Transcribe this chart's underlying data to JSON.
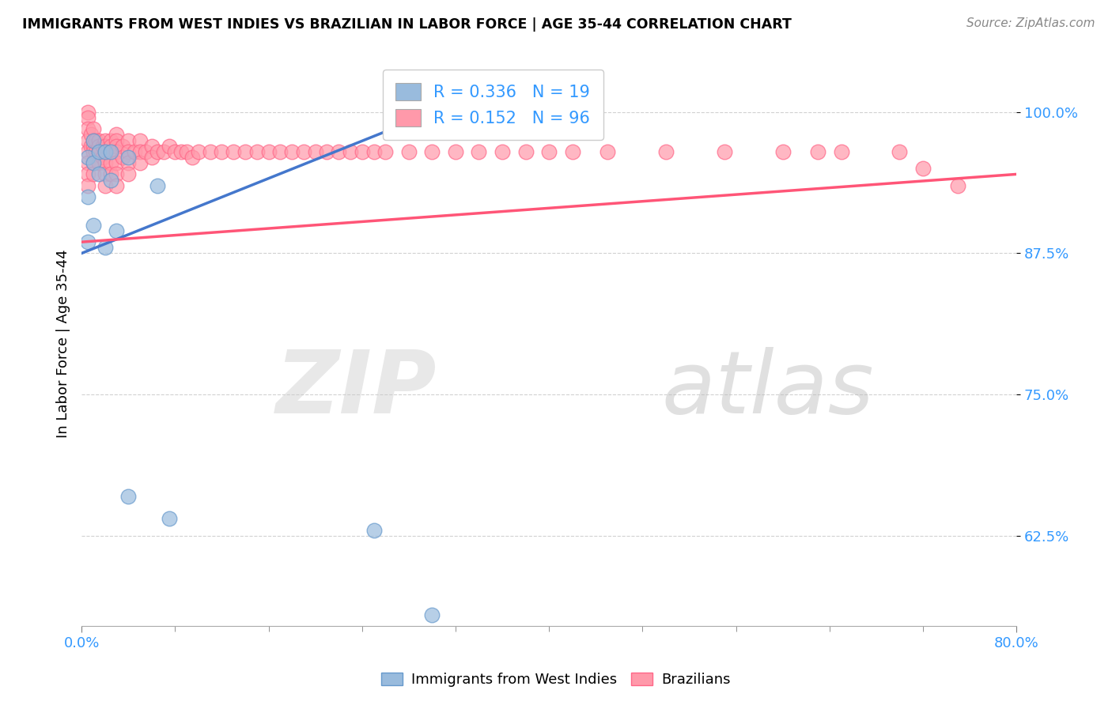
{
  "title": "IMMIGRANTS FROM WEST INDIES VS BRAZILIAN IN LABOR FORCE | AGE 35-44 CORRELATION CHART",
  "source": "Source: ZipAtlas.com",
  "ylabel": "In Labor Force | Age 35-44",
  "y_tick_labels": [
    "62.5%",
    "75.0%",
    "87.5%",
    "100.0%"
  ],
  "y_tick_values": [
    0.625,
    0.75,
    0.875,
    1.0
  ],
  "xlim": [
    0.0,
    0.8
  ],
  "ylim": [
    0.545,
    1.045
  ],
  "legend_R_labels": [
    "R = 0.336   N = 19",
    "R = 0.152   N = 96"
  ],
  "legend_labels": [
    "Immigrants from West Indies",
    "Brazilians"
  ],
  "blue_color": "#99BBDD",
  "pink_color": "#FF99AA",
  "blue_edge_color": "#6699CC",
  "pink_edge_color": "#FF6688",
  "blue_line_color": "#4477CC",
  "pink_line_color": "#FF5577",
  "blue_trend": [
    0.0,
    0.35,
    0.875,
    1.02
  ],
  "pink_trend": [
    0.0,
    0.8,
    0.885,
    0.945
  ],
  "west_indies_x": [
    0.005,
    0.005,
    0.005,
    0.01,
    0.01,
    0.01,
    0.015,
    0.015,
    0.02,
    0.02,
    0.025,
    0.025,
    0.03,
    0.04,
    0.04,
    0.065,
    0.075,
    0.25,
    0.3
  ],
  "west_indies_y": [
    0.96,
    0.925,
    0.885,
    0.975,
    0.955,
    0.9,
    0.965,
    0.945,
    0.965,
    0.88,
    0.965,
    0.94,
    0.895,
    0.96,
    0.66,
    0.935,
    0.64,
    0.63,
    0.555
  ],
  "brazil_x": [
    0.005,
    0.005,
    0.005,
    0.005,
    0.005,
    0.005,
    0.005,
    0.005,
    0.008,
    0.008,
    0.01,
    0.01,
    0.01,
    0.01,
    0.01,
    0.01,
    0.012,
    0.012,
    0.015,
    0.015,
    0.015,
    0.015,
    0.018,
    0.018,
    0.02,
    0.02,
    0.02,
    0.02,
    0.02,
    0.02,
    0.025,
    0.025,
    0.025,
    0.025,
    0.025,
    0.03,
    0.03,
    0.03,
    0.03,
    0.03,
    0.03,
    0.03,
    0.035,
    0.035,
    0.04,
    0.04,
    0.04,
    0.04,
    0.045,
    0.05,
    0.05,
    0.05,
    0.055,
    0.06,
    0.06,
    0.065,
    0.07,
    0.075,
    0.08,
    0.085,
    0.09,
    0.095,
    0.1,
    0.11,
    0.12,
    0.13,
    0.14,
    0.15,
    0.16,
    0.17,
    0.18,
    0.19,
    0.2,
    0.21,
    0.22,
    0.23,
    0.24,
    0.25,
    0.26,
    0.28,
    0.3,
    0.32,
    0.34,
    0.36,
    0.38,
    0.4,
    0.42,
    0.45,
    0.5,
    0.55,
    0.6,
    0.63,
    0.65,
    0.7,
    0.72,
    0.75
  ],
  "brazil_y": [
    1.0,
    0.995,
    0.985,
    0.975,
    0.965,
    0.955,
    0.945,
    0.935,
    0.98,
    0.97,
    0.985,
    0.975,
    0.97,
    0.965,
    0.955,
    0.945,
    0.975,
    0.965,
    0.975,
    0.97,
    0.965,
    0.955,
    0.97,
    0.96,
    0.975,
    0.97,
    0.965,
    0.955,
    0.945,
    0.935,
    0.975,
    0.97,
    0.965,
    0.955,
    0.945,
    0.98,
    0.975,
    0.97,
    0.965,
    0.955,
    0.945,
    0.935,
    0.97,
    0.96,
    0.975,
    0.965,
    0.955,
    0.945,
    0.965,
    0.975,
    0.965,
    0.955,
    0.965,
    0.97,
    0.96,
    0.965,
    0.965,
    0.97,
    0.965,
    0.965,
    0.965,
    0.96,
    0.965,
    0.965,
    0.965,
    0.965,
    0.965,
    0.965,
    0.965,
    0.965,
    0.965,
    0.965,
    0.965,
    0.965,
    0.965,
    0.965,
    0.965,
    0.965,
    0.965,
    0.965,
    0.965,
    0.965,
    0.965,
    0.965,
    0.965,
    0.965,
    0.965,
    0.965,
    0.965,
    0.965,
    0.965,
    0.965,
    0.965,
    0.965,
    0.95,
    0.935
  ]
}
